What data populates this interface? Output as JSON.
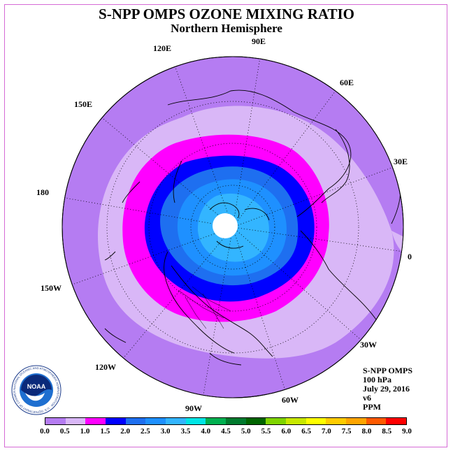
{
  "title": "S-NPP OMPS OZONE MIXING RATIO",
  "subtitle": "Northern Hemisphere",
  "longitude_labels": [
    "90E",
    "60E",
    "30E",
    "0",
    "30W",
    "60W",
    "90W",
    "120W",
    "150W",
    "180",
    "150E",
    "120E"
  ],
  "info": {
    "instrument": "S-NPP OMPS",
    "level": "100 hPa",
    "date": "July 29, 2016",
    "version": "v6",
    "units": "PPM"
  },
  "colorbar": {
    "ticks": [
      "0.0",
      "0.5",
      "1.0",
      "1.5",
      "2.0",
      "2.5",
      "3.0",
      "3.5",
      "4.0",
      "4.5",
      "5.0",
      "5.5",
      "6.0",
      "6.5",
      "7.0",
      "7.5",
      "8.0",
      "8.5",
      "9.0"
    ],
    "colors": [
      "#b57cf2",
      "#d9b7f7",
      "#ff00ff",
      "#0000ff",
      "#1e6ff0",
      "#1e90ff",
      "#33b5ff",
      "#00e5e5",
      "#00b050",
      "#007a2e",
      "#006400",
      "#7fd400",
      "#c8e800",
      "#ffff00",
      "#ffcc00",
      "#ffa500",
      "#ff5a00",
      "#ff0000",
      "#8b5a2b"
    ]
  },
  "logo": {
    "text": "NOAA",
    "ring_text": "NATIONAL OCEANIC AND ATMOSPHERIC ADMINISTRATION · U.S. DEPARTMENT OF COMMERCE"
  }
}
